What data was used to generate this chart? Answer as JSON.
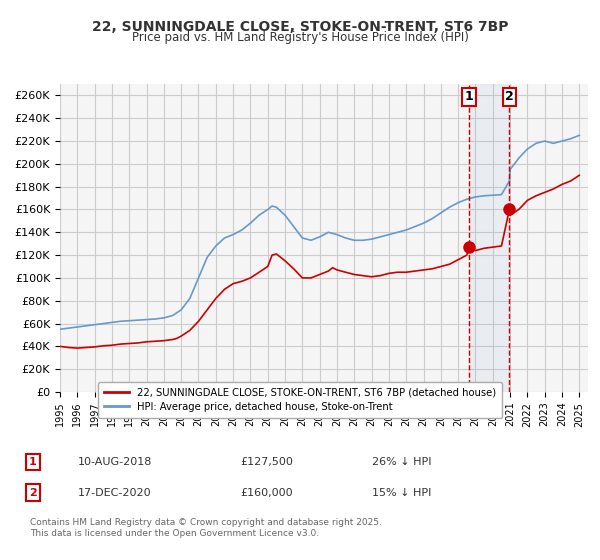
{
  "title": "22, SUNNINGDALE CLOSE, STOKE-ON-TRENT, ST6 7BP",
  "subtitle": "Price paid vs. HM Land Registry's House Price Index (HPI)",
  "legend_label_red": "22, SUNNINGDALE CLOSE, STOKE-ON-TRENT, ST6 7BP (detached house)",
  "legend_label_blue": "HPI: Average price, detached house, Stoke-on-Trent",
  "footer": "Contains HM Land Registry data © Crown copyright and database right 2025.\nThis data is licensed under the Open Government Licence v3.0.",
  "sale1_label": "1",
  "sale1_date": "10-AUG-2018",
  "sale1_price": "£127,500",
  "sale1_hpi": "26% ↓ HPI",
  "sale1_year": 2018.61,
  "sale1_value": 127500,
  "sale2_label": "2",
  "sale2_date": "17-DEC-2020",
  "sale2_price": "£160,000",
  "sale2_hpi": "15% ↓ HPI",
  "sale2_year": 2020.96,
  "sale2_value": 160000,
  "red_color": "#cc0000",
  "blue_color": "#6699cc",
  "vline_color": "#cc0000",
  "grid_color": "#cccccc",
  "bg_color": "#ffffff",
  "plot_bg_color": "#f5f5f5",
  "ylim": [
    0,
    270000
  ],
  "ytick_step": 20000,
  "xmin": 1995,
  "xmax": 2025.5,
  "red_data": [
    [
      1995.0,
      40000
    ],
    [
      1995.5,
      39000
    ],
    [
      1996.0,
      38500
    ],
    [
      1996.5,
      39000
    ],
    [
      1997.0,
      39500
    ],
    [
      1997.5,
      40500
    ],
    [
      1998.0,
      41000
    ],
    [
      1998.5,
      42000
    ],
    [
      1999.0,
      42500
    ],
    [
      1999.5,
      43000
    ],
    [
      2000.0,
      44000
    ],
    [
      2000.5,
      44500
    ],
    [
      2001.0,
      45000
    ],
    [
      2001.5,
      46000
    ],
    [
      2001.75,
      47000
    ],
    [
      2002.0,
      49000
    ],
    [
      2002.5,
      54000
    ],
    [
      2003.0,
      62000
    ],
    [
      2003.5,
      72000
    ],
    [
      2004.0,
      82000
    ],
    [
      2004.5,
      90000
    ],
    [
      2005.0,
      95000
    ],
    [
      2005.5,
      97000
    ],
    [
      2006.0,
      100000
    ],
    [
      2006.5,
      105000
    ],
    [
      2007.0,
      110000
    ],
    [
      2007.25,
      120000
    ],
    [
      2007.5,
      121000
    ],
    [
      2008.0,
      115000
    ],
    [
      2008.5,
      108000
    ],
    [
      2009.0,
      100000
    ],
    [
      2009.5,
      100000
    ],
    [
      2010.0,
      103000
    ],
    [
      2010.5,
      106000
    ],
    [
      2010.75,
      109000
    ],
    [
      2011.0,
      107000
    ],
    [
      2011.5,
      105000
    ],
    [
      2012.0,
      103000
    ],
    [
      2012.5,
      102000
    ],
    [
      2013.0,
      101000
    ],
    [
      2013.5,
      102000
    ],
    [
      2014.0,
      104000
    ],
    [
      2014.5,
      105000
    ],
    [
      2015.0,
      105000
    ],
    [
      2015.5,
      106000
    ],
    [
      2016.0,
      107000
    ],
    [
      2016.5,
      108000
    ],
    [
      2017.0,
      110000
    ],
    [
      2017.5,
      112000
    ],
    [
      2018.0,
      116000
    ],
    [
      2018.5,
      120000
    ],
    [
      2018.61,
      127500
    ],
    [
      2019.0,
      124000
    ],
    [
      2019.5,
      126000
    ],
    [
      2020.0,
      127000
    ],
    [
      2020.5,
      128000
    ],
    [
      2020.96,
      160000
    ],
    [
      2021.0,
      155000
    ],
    [
      2021.5,
      160000
    ],
    [
      2022.0,
      168000
    ],
    [
      2022.5,
      172000
    ],
    [
      2023.0,
      175000
    ],
    [
      2023.5,
      178000
    ],
    [
      2024.0,
      182000
    ],
    [
      2024.5,
      185000
    ],
    [
      2025.0,
      190000
    ]
  ],
  "blue_data": [
    [
      1995.0,
      55000
    ],
    [
      1995.5,
      56000
    ],
    [
      1996.0,
      57000
    ],
    [
      1996.5,
      58000
    ],
    [
      1997.0,
      59000
    ],
    [
      1997.5,
      60000
    ],
    [
      1998.0,
      61000
    ],
    [
      1998.5,
      62000
    ],
    [
      1999.0,
      62500
    ],
    [
      1999.5,
      63000
    ],
    [
      2000.0,
      63500
    ],
    [
      2000.5,
      64000
    ],
    [
      2001.0,
      65000
    ],
    [
      2001.5,
      67000
    ],
    [
      2002.0,
      72000
    ],
    [
      2002.5,
      82000
    ],
    [
      2003.0,
      100000
    ],
    [
      2003.5,
      118000
    ],
    [
      2004.0,
      128000
    ],
    [
      2004.5,
      135000
    ],
    [
      2005.0,
      138000
    ],
    [
      2005.5,
      142000
    ],
    [
      2006.0,
      148000
    ],
    [
      2006.5,
      155000
    ],
    [
      2007.0,
      160000
    ],
    [
      2007.25,
      163000
    ],
    [
      2007.5,
      162000
    ],
    [
      2008.0,
      155000
    ],
    [
      2008.5,
      145000
    ],
    [
      2009.0,
      135000
    ],
    [
      2009.5,
      133000
    ],
    [
      2010.0,
      136000
    ],
    [
      2010.5,
      140000
    ],
    [
      2011.0,
      138000
    ],
    [
      2011.5,
      135000
    ],
    [
      2012.0,
      133000
    ],
    [
      2012.5,
      133000
    ],
    [
      2013.0,
      134000
    ],
    [
      2013.5,
      136000
    ],
    [
      2014.0,
      138000
    ],
    [
      2014.5,
      140000
    ],
    [
      2015.0,
      142000
    ],
    [
      2015.5,
      145000
    ],
    [
      2016.0,
      148000
    ],
    [
      2016.5,
      152000
    ],
    [
      2017.0,
      157000
    ],
    [
      2017.5,
      162000
    ],
    [
      2018.0,
      166000
    ],
    [
      2018.5,
      169000
    ],
    [
      2019.0,
      171000
    ],
    [
      2019.5,
      172000
    ],
    [
      2020.0,
      172500
    ],
    [
      2020.5,
      173000
    ],
    [
      2020.96,
      185000
    ],
    [
      2021.0,
      195000
    ],
    [
      2021.5,
      205000
    ],
    [
      2022.0,
      213000
    ],
    [
      2022.5,
      218000
    ],
    [
      2023.0,
      220000
    ],
    [
      2023.5,
      218000
    ],
    [
      2024.0,
      220000
    ],
    [
      2024.5,
      222000
    ],
    [
      2025.0,
      225000
    ]
  ]
}
